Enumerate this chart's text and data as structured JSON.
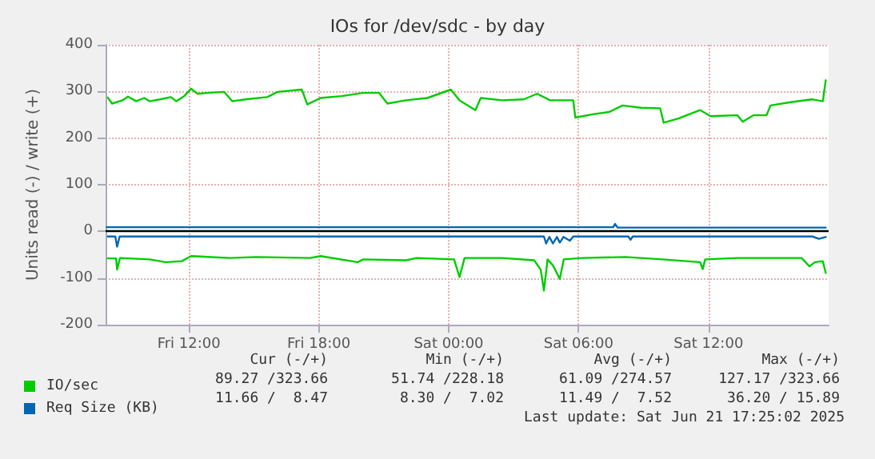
{
  "chart_data": {
    "type": "line",
    "title": "IOs for /dev/sdc - by day",
    "ylabel": "Units read (-) / write (+)",
    "xlim": [
      "2025-06-20T08:09",
      "2025-06-21T17:33"
    ],
    "xticks": [
      {
        "value": "2025-06-20T12:00",
        "label": "Fri 12:00"
      },
      {
        "value": "2025-06-20T18:00",
        "label": "Fri 18:00"
      },
      {
        "value": "2025-06-21T00:00",
        "label": "Sat 00:00"
      },
      {
        "value": "2025-06-21T06:00",
        "label": "Sat 06:00"
      },
      {
        "value": "2025-06-21T12:00",
        "label": "Sat 12:00"
      }
    ],
    "ylim": [
      -200,
      400
    ],
    "yticks": [
      -200,
      -100,
      0,
      100,
      200,
      300,
      400
    ],
    "grid": true,
    "legend": "bottom left",
    "marker": "none",
    "line_style": "solid",
    "ref_lines": [
      {
        "axis": "y",
        "value": 0,
        "color": "#000000"
      }
    ],
    "series": [
      {
        "name": "IO/sec",
        "color": "#00cc00",
        "x": [
          "2025-06-20T08:15",
          "2025-06-20T08:27",
          "2025-06-20T08:56",
          "2025-06-20T09:11",
          "2025-06-20T09:34",
          "2025-06-20T09:56",
          "2025-06-20T10:11",
          "2025-06-20T10:40",
          "2025-06-20T11:10",
          "2025-06-20T11:25",
          "2025-06-20T11:47",
          "2025-06-20T12:06",
          "2025-06-20T12:24",
          "2025-06-20T12:53",
          "2025-06-20T13:38",
          "2025-06-20T14:00",
          "2025-06-20T14:37",
          "2025-06-20T15:37",
          "2025-06-20T16:06",
          "2025-06-20T17:13",
          "2025-06-20T17:28",
          "2025-06-20T18:05",
          "2025-06-20T19:04",
          "2025-06-20T20:03",
          "2025-06-20T20:47",
          "2025-06-20T21:10",
          "2025-06-20T22:02",
          "2025-06-20T23:01",
          "2025-06-21T00:06",
          "2025-06-21T00:30",
          "2025-06-21T01:14",
          "2025-06-21T01:29",
          "2025-06-21T02:28",
          "2025-06-21T03:28",
          "2025-06-21T04:05",
          "2025-06-21T04:41",
          "2025-06-21T05:45",
          "2025-06-21T05:51",
          "2025-06-21T06:40",
          "2025-06-21T07:25",
          "2025-06-21T08:02",
          "2025-06-21T08:53",
          "2025-06-21T09:46",
          "2025-06-21T09:56",
          "2025-06-21T10:37",
          "2025-06-21T11:37",
          "2025-06-21T12:06",
          "2025-06-21T13:20",
          "2025-06-21T13:35",
          "2025-06-21T14:05",
          "2025-06-21T14:41",
          "2025-06-21T14:52",
          "2025-06-21T15:48",
          "2025-06-21T16:47",
          "2025-06-21T17:17",
          "2025-06-21T17:25"
        ],
        "values": [
          287,
          274,
          281,
          289,
          279,
          286,
          279,
          283,
          288,
          279,
          290,
          306,
          295,
          297,
          299,
          279,
          283,
          288,
          299,
          304,
          272,
          286,
          290,
          297,
          297,
          274,
          281,
          286,
          304,
          281,
          260,
          286,
          281,
          283,
          295,
          281,
          281,
          244,
          251,
          256,
          270,
          265,
          264,
          233,
          242,
          260,
          247,
          249,
          235,
          249,
          249,
          270,
          277,
          283,
          279,
          324
        ]
      },
      {
        "color": "#00cc00",
        "x": [
          "2025-06-20T08:15",
          "2025-06-20T08:38",
          "2025-06-20T08:41",
          "2025-06-20T08:49",
          "2025-06-20T10:11",
          "2025-06-20T10:55",
          "2025-06-20T11:40",
          "2025-06-20T12:06",
          "2025-06-20T13:53",
          "2025-06-20T15:07",
          "2025-06-20T17:35",
          "2025-06-20T18:05",
          "2025-06-20T19:48",
          "2025-06-20T20:03",
          "2025-06-20T22:02",
          "2025-06-20T22:31",
          "2025-06-21T00:15",
          "2025-06-21T00:30",
          "2025-06-21T00:44",
          "2025-06-21T02:28",
          "2025-06-21T03:57",
          "2025-06-21T04:15",
          "2025-06-21T04:24",
          "2025-06-21T04:34",
          "2025-06-21T04:49",
          "2025-06-21T05:08",
          "2025-06-21T05:19",
          "2025-06-21T06:10",
          "2025-06-21T08:09",
          "2025-06-21T09:53",
          "2025-06-21T11:37",
          "2025-06-21T11:44",
          "2025-06-21T11:51",
          "2025-06-21T13:20",
          "2025-06-21T15:19",
          "2025-06-21T16:18",
          "2025-06-21T16:40",
          "2025-06-21T16:55",
          "2025-06-21T17:17",
          "2025-06-21T17:25"
        ],
        "values": [
          -58,
          -58,
          -82,
          -57,
          -60,
          -66,
          -64,
          -53,
          -57,
          -55,
          -57,
          -53,
          -66,
          -60,
          -62,
          -57,
          -60,
          -98,
          -57,
          -57,
          -62,
          -82,
          -127,
          -60,
          -73,
          -102,
          -60,
          -57,
          -55,
          -60,
          -66,
          -81,
          -60,
          -57,
          -57,
          -57,
          -75,
          -66,
          -64,
          -89
        ]
      },
      {
        "name": "Req Size (KB)",
        "color": "#0066b3",
        "x": [
          "2025-06-20T08:12",
          "2025-06-20T14:00",
          "2025-06-20T20:00",
          "2025-06-21T02:00",
          "2025-06-21T07:36",
          "2025-06-21T07:41",
          "2025-06-21T07:48",
          "2025-06-21T12:00",
          "2025-06-21T17:25"
        ],
        "values": [
          9,
          9,
          9,
          9,
          9,
          16,
          8,
          8,
          8
        ]
      },
      {
        "color": "#0066b3",
        "x": [
          "2025-06-20T08:15",
          "2025-06-20T08:36",
          "2025-06-20T08:41",
          "2025-06-20T08:48",
          "2025-06-20T20:00",
          "2025-06-21T04:24",
          "2025-06-21T04:30",
          "2025-06-21T04:39",
          "2025-06-21T04:49",
          "2025-06-21T05:00",
          "2025-06-21T05:08",
          "2025-06-21T05:18",
          "2025-06-21T05:36",
          "2025-06-21T05:45",
          "2025-06-21T08:18",
          "2025-06-21T08:24",
          "2025-06-21T08:30",
          "2025-06-21T16:48",
          "2025-06-21T17:06",
          "2025-06-21T17:25"
        ],
        "values": [
          -11,
          -11,
          -33,
          -11,
          -11,
          -11,
          -26,
          -12,
          -26,
          -12,
          -24,
          -12,
          -20,
          -11,
          -11,
          -18,
          -11,
          -11,
          -16,
          -12
        ]
      }
    ],
    "annotations": [
      "Cur (-/+)",
      "Min (-/+)",
      "Avg (-/+)",
      "Max (-/+)",
      "89.27 /323.66",
      "51.74 /228.18",
      "61.09 /274.57",
      "127.17 /323.66",
      "11.66 /  8.47",
      "8.30 /  7.02",
      "11.49 /  7.52",
      "36.20 / 15.89",
      "Last update: Sat Jun 21 17:25:02 2025"
    ]
  }
}
